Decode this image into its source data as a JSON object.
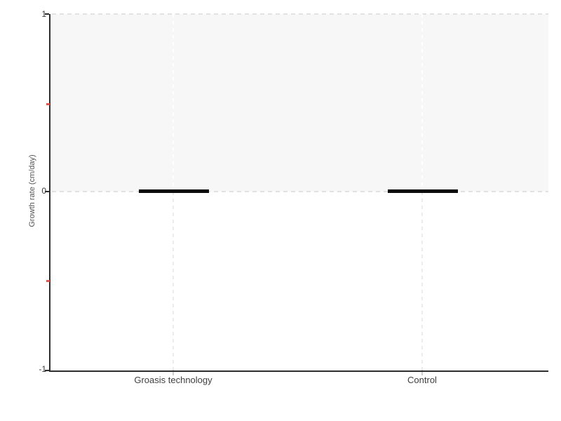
{
  "chart_data": {
    "type": "bar",
    "title": "",
    "categories": [
      "Groasis technology",
      "Control"
    ],
    "values": [
      0,
      0
    ],
    "xlabel": "",
    "ylabel": "Growth rate (cm/day)",
    "ylim": [
      -1,
      1
    ],
    "yticks": [
      1,
      0,
      -1
    ],
    "ytick_labels": [
      "1",
      "0",
      "-1"
    ],
    "minor_yticks": [
      0.5,
      -0.5
    ],
    "legend_position": "none",
    "grid": {
      "vertical": "dashed line at each category",
      "horizontal": "dashed lines at y=0 and y=1"
    },
    "shaded_band": {
      "from_y": 0,
      "to_y": 1,
      "color": "#f7f7f7"
    },
    "colors": {
      "bar": "#0a0a0a",
      "axis": "#2e2e2e",
      "minor_tick": "#dd5a52",
      "gridline": "#ececec",
      "dashed_line": "#e2e2e2",
      "tick_label": "#3a3a3a"
    }
  }
}
